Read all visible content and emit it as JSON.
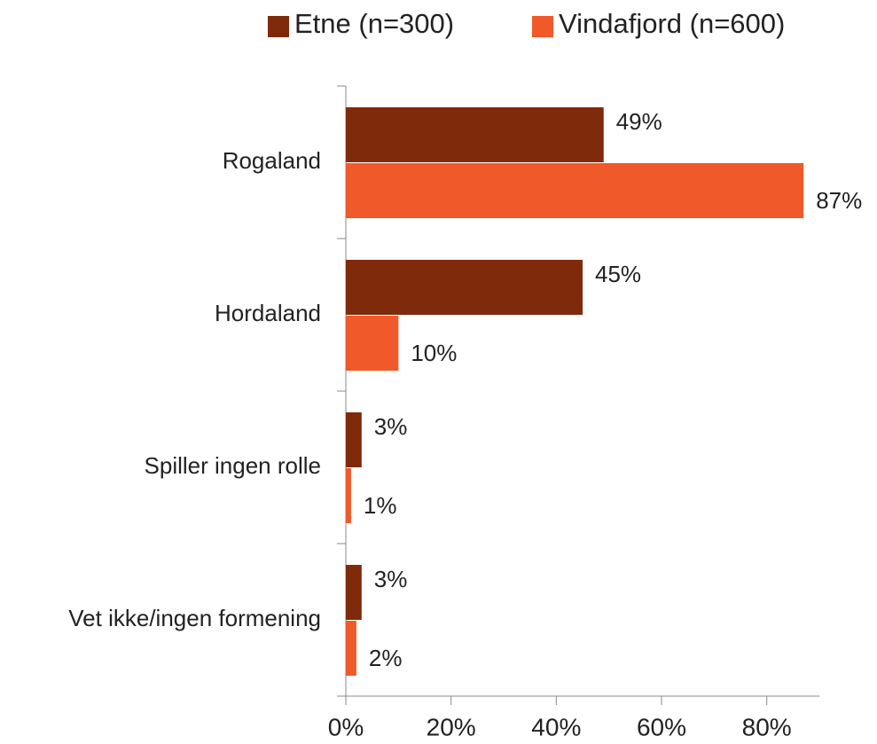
{
  "chart_data": {
    "type": "hbar",
    "categories": [
      "Rogaland",
      "Hordaland",
      "Spiller ingen rolle",
      "Vet ikke/ingen formening"
    ],
    "series": [
      {
        "name": "Etne (n=300)",
        "color": "#7f2a0b",
        "values": [
          49,
          45,
          3,
          3
        ],
        "value_labels": [
          "49%",
          "45%",
          "3%",
          "3%"
        ]
      },
      {
        "name": "Vindafjord (n=600)",
        "color": "#f0592a",
        "values": [
          87,
          10,
          1,
          2
        ],
        "value_labels": [
          "87%",
          "10%",
          "1%",
          "2%"
        ]
      }
    ],
    "xlim": [
      0,
      90
    ],
    "xticks": [
      {
        "value": 0,
        "label": "0%"
      },
      {
        "value": 20,
        "label": "20%"
      },
      {
        "value": 40,
        "label": "40%"
      },
      {
        "value": 60,
        "label": "60%"
      },
      {
        "value": 80,
        "label": "80%"
      }
    ],
    "legend": "top",
    "grid": false
  }
}
